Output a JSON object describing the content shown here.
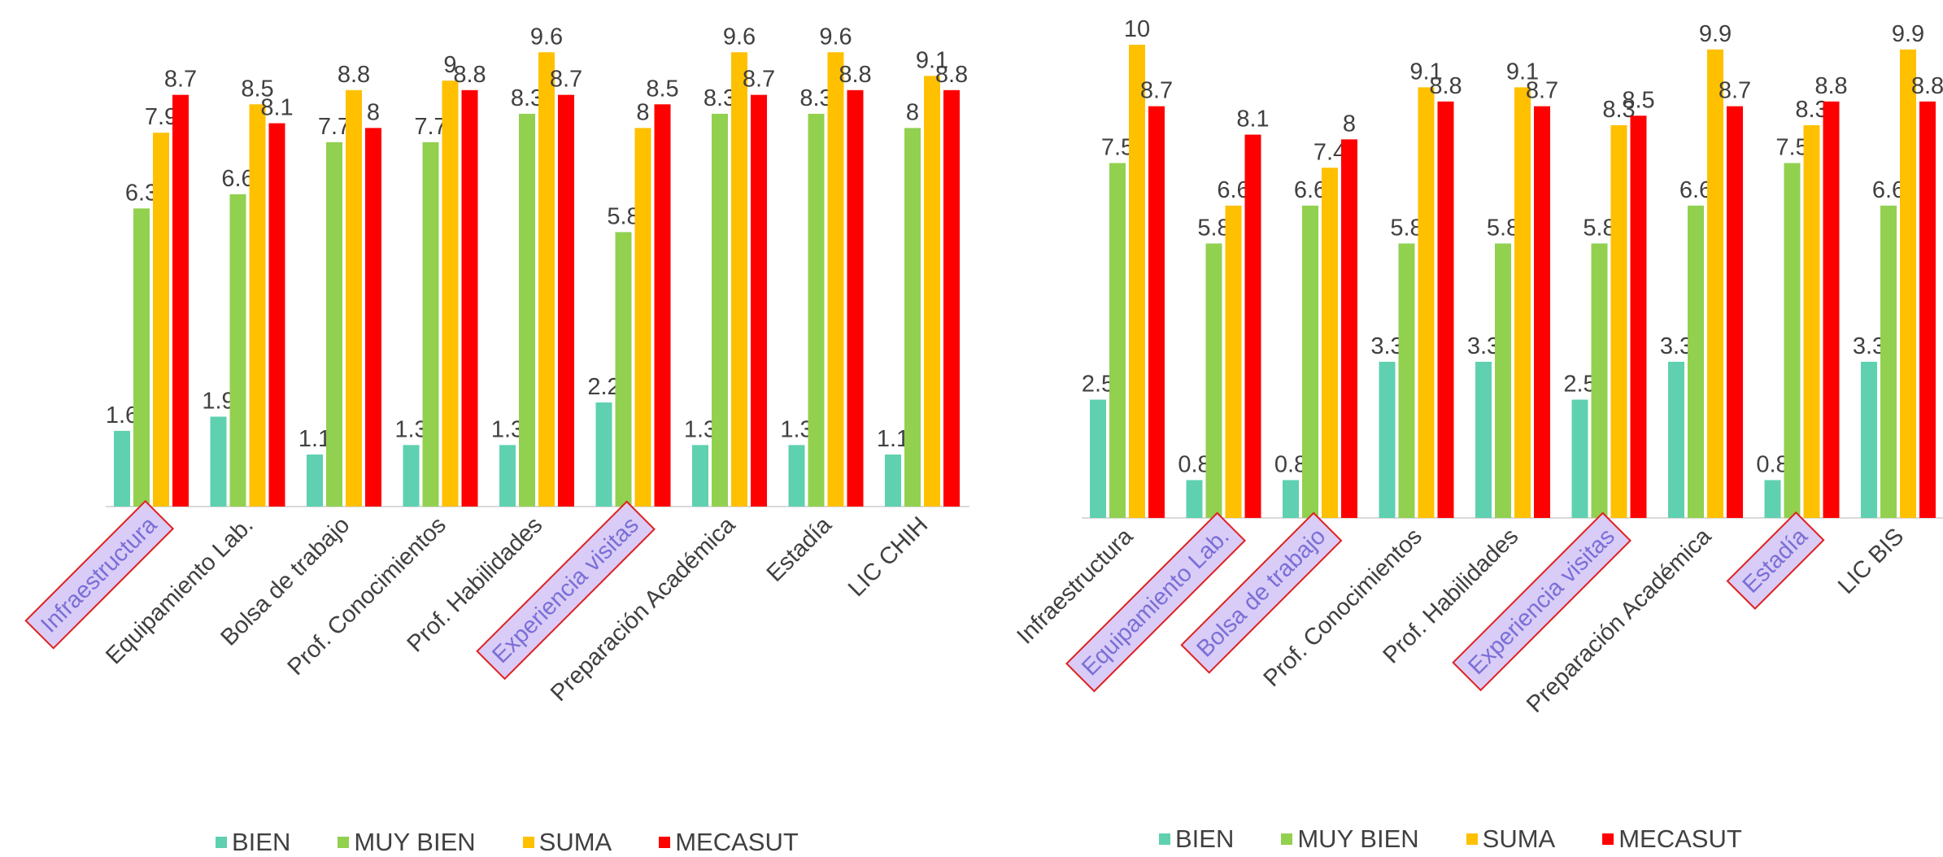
{
  "colors": {
    "BIEN": "#5fd0b0",
    "MUY BIEN": "#92d050",
    "SUMA": "#ffc000",
    "MECASUT": "#ff0000",
    "highlight_fill": "#d9ccf7",
    "highlight_border": "#e02020",
    "highlight_text": "#7a6fd6"
  },
  "chart_data": [
    {
      "type": "bar",
      "categories": [
        "Infraestructura",
        "Equipamiento Lab.",
        "Bolsa de trabajo",
        "Prof. Conocimientos",
        "Prof. Habilidades",
        "Experiencia visitas",
        "Preparación Académica",
        "Estadía",
        "LIC CHIH"
      ],
      "highlighted": [
        "Infraestructura",
        "Experiencia visitas"
      ],
      "series": [
        {
          "name": "BIEN",
          "values": [
            1.6,
            1.9,
            1.1,
            1.3,
            1.3,
            2.2,
            1.3,
            1.3,
            1.1
          ]
        },
        {
          "name": "MUY BIEN",
          "values": [
            6.3,
            6.6,
            7.7,
            7.7,
            8.3,
            5.8,
            8.3,
            8.3,
            8
          ]
        },
        {
          "name": "SUMA",
          "values": [
            7.9,
            8.5,
            8.8,
            9,
            9.6,
            8,
            9.6,
            9.6,
            9.1
          ]
        },
        {
          "name": "MECASUT",
          "values": [
            8.7,
            8.1,
            8,
            8.8,
            8.7,
            8.5,
            8.7,
            8.8,
            8.8
          ]
        }
      ],
      "ylim": [
        0,
        10
      ],
      "grid": false,
      "legend_position": "bottom"
    },
    {
      "type": "bar",
      "categories": [
        "Infraestructura",
        "Equipamiento Lab.",
        "Bolsa de trabajo",
        "Prof. Conocimientos",
        "Prof. Habilidades",
        "Experiencia visitas",
        "Preparación Académica",
        "Estadía",
        "LIC BIS"
      ],
      "highlighted": [
        "Equipamiento Lab.",
        "Bolsa de trabajo",
        "Experiencia visitas",
        "Estadía"
      ],
      "series": [
        {
          "name": "BIEN",
          "values": [
            2.5,
            0.8,
            0.8,
            3.3,
            3.3,
            2.5,
            3.3,
            0.8,
            3.3
          ]
        },
        {
          "name": "MUY BIEN",
          "values": [
            7.5,
            5.8,
            6.6,
            5.8,
            5.8,
            5.8,
            6.6,
            7.5,
            6.6
          ]
        },
        {
          "name": "SUMA",
          "values": [
            10,
            6.6,
            7.4,
            9.1,
            9.1,
            8.3,
            9.9,
            8.3,
            9.9
          ]
        },
        {
          "name": "MECASUT",
          "values": [
            8.7,
            8.1,
            8,
            8.8,
            8.7,
            8.5,
            8.7,
            8.8,
            8.8
          ]
        }
      ],
      "ylim": [
        0,
        10
      ],
      "grid": false,
      "legend_position": "bottom"
    }
  ]
}
